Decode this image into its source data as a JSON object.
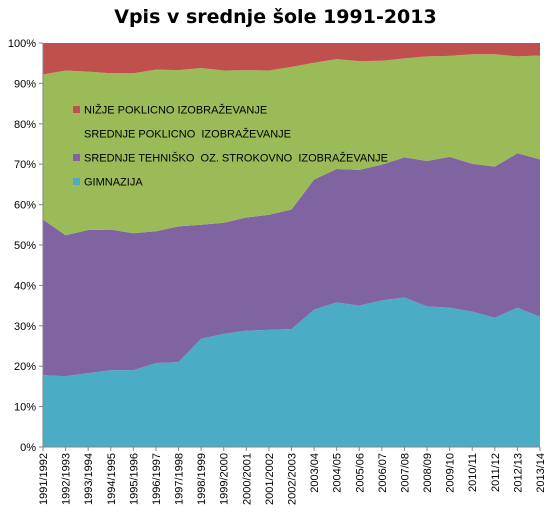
{
  "chart_data": {
    "type": "area",
    "stacked": true,
    "normalized_percent": true,
    "title": "Vpis v srednje šole 1991-2013",
    "xlabel": "",
    "ylabel": "",
    "ylim": [
      0,
      100
    ],
    "y_ticks": [
      "0%",
      "10%",
      "20%",
      "30%",
      "40%",
      "50%",
      "60%",
      "70%",
      "80%",
      "90%",
      "100%"
    ],
    "grid": true,
    "legend_position": "inside-top-left",
    "categories": [
      "1991/1992",
      "1992/1993",
      "1993/1994",
      "1994/1995",
      "1995/1996",
      "1996/1997",
      "1997/1998",
      "1998/1999",
      "1999/2000",
      "2000/2001",
      "2001/2002",
      "2002/2003",
      "2003/04",
      "2004/05",
      "2005/06",
      "2006/07",
      "2007/08",
      "2008/09",
      "2009/10",
      "2010/11",
      "2011/12",
      "2012/13",
      "2013/14"
    ],
    "series": [
      {
        "name": "GIMNAZIJA",
        "color": "#4BACC6",
        "values": [
          17.8,
          17.5,
          18.3,
          19.0,
          19.0,
          20.8,
          21.0,
          26.8,
          28.0,
          28.8,
          29.0,
          29.2,
          34.0,
          35.8,
          35.0,
          36.3,
          37.0,
          34.8,
          34.5,
          33.5,
          32.0,
          34.5,
          32.2
        ]
      },
      {
        "name": "SREDNJE TEHNIŠKO  OZ. STROKOVNO  IZOBRAŽEVANJE",
        "color": "#8064A2",
        "values": [
          38.5,
          34.9,
          35.4,
          34.8,
          33.9,
          32.6,
          33.6,
          28.2,
          27.5,
          28.0,
          28.5,
          29.6,
          32.2,
          33.0,
          33.6,
          33.6,
          34.7,
          36.0,
          37.3,
          36.6,
          37.4,
          38.2,
          39.0
        ]
      },
      {
        "name": "SREDNJE POKLICNO  IZOBRAŽEVANJE",
        "color": "#9BBB59",
        "values": [
          35.9,
          40.8,
          39.2,
          38.7,
          39.6,
          40.0,
          38.7,
          38.8,
          37.7,
          36.5,
          35.7,
          35.3,
          28.9,
          27.2,
          26.9,
          25.7,
          24.5,
          25.9,
          25.0,
          27.1,
          27.8,
          24.0,
          25.7
        ]
      },
      {
        "name": "NIŽJE POKLICNO IZOBRAŽEVANJE",
        "color": "#C0504D",
        "values": [
          7.8,
          6.8,
          7.1,
          7.5,
          7.5,
          6.6,
          6.7,
          6.2,
          6.8,
          6.7,
          6.8,
          5.9,
          4.9,
          4.0,
          4.5,
          4.4,
          3.8,
          3.3,
          3.2,
          2.8,
          2.8,
          3.3,
          3.1
        ]
      }
    ],
    "legend_order": [
      "NIŽJE POKLICNO IZOBRAŽEVANJE",
      "SREDNJE POKLICNO  IZOBRAŽEVANJE",
      "SREDNJE TEHNIŠKO  OZ. STROKOVNO  IZOBRAŽEVANJE",
      "GIMNAZIJA"
    ]
  }
}
